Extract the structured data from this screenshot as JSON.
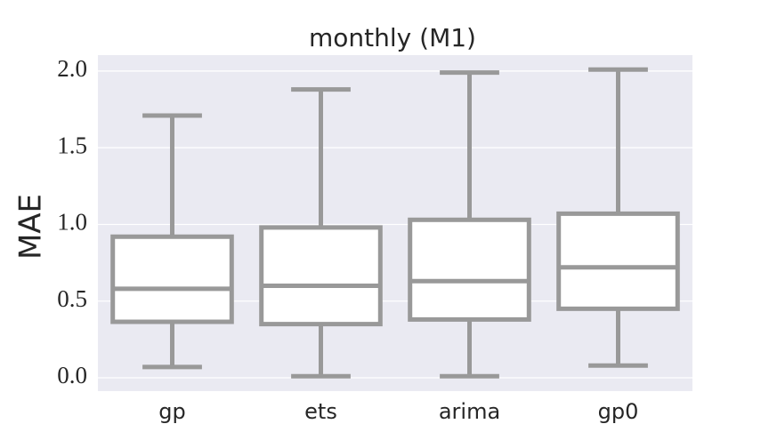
{
  "chart_data": {
    "type": "box",
    "title": "monthly (M1)",
    "y_label": "MAE",
    "categories": [
      "gp",
      "ets",
      "arima",
      "gp0"
    ],
    "boxes": [
      {
        "whislo": 0.07,
        "q1": 0.365,
        "med": 0.58,
        "q3": 0.92,
        "whishi": 1.71
      },
      {
        "whislo": 0.01,
        "q1": 0.35,
        "med": 0.6,
        "q3": 0.98,
        "whishi": 1.88
      },
      {
        "whislo": 0.01,
        "q1": 0.38,
        "med": 0.63,
        "q3": 1.03,
        "whishi": 1.99
      },
      {
        "whislo": 0.08,
        "q1": 0.45,
        "med": 0.72,
        "q3": 1.07,
        "whishi": 2.01
      }
    ],
    "color": "#999999",
    "box_fill": "#ffffff",
    "background": "#eaeaf2",
    "grid": true,
    "ylim": [
      -0.087,
      2.104
    ],
    "yticks": [
      {
        "value": 0,
        "label": "0.0"
      },
      0.5,
      {
        "value": 1,
        "label": "1.0"
      },
      1.5,
      {
        "value": 2,
        "label": "2.0"
      }
    ]
  }
}
